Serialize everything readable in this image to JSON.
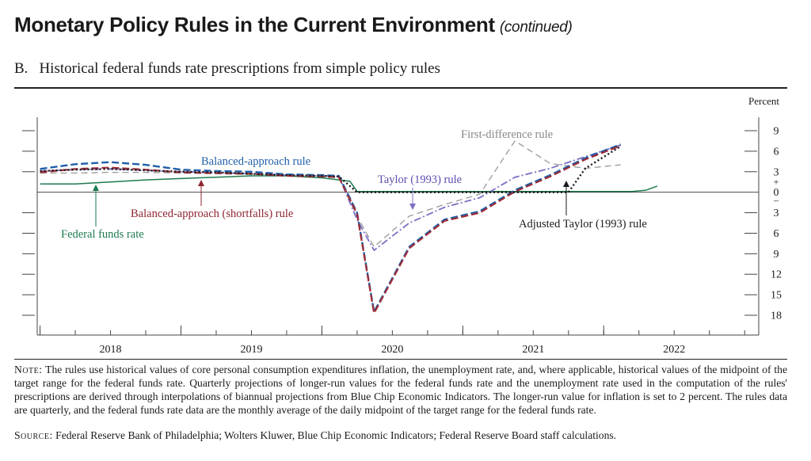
{
  "header": {
    "title": "Monetary Policy Rules in the Current Environment",
    "title_suffix": "(continued)",
    "panel_letter": "B.",
    "panel_title": "Historical federal funds rate prescriptions from simple policy rules"
  },
  "footer": {
    "note_label": "Note:",
    "note_text": "The rules use historical values of core personal consumption expenditures inflation, the unemployment rate, and, where applicable, historical values of the midpoint of the target range for the federal funds rate. Quarterly projections of longer-run values for the federal funds rate and the unemployment rate used in the computation of the rules' prescriptions are derived through interpolations of biannual projections from Blue Chip Economic Indicators. The longer-run value for inflation is set to 2 percent. The rules data are quarterly, and the federal funds rate data are the monthly average of the daily midpoint of the target range for the federal funds rate.",
    "source_label": "Source:",
    "source_text": "Federal Reserve Bank of Philadelphia; Wolters Kluwer, Blue Chip Economic Indicators; Federal Reserve Board staff calculations."
  },
  "chart_data": {
    "type": "line",
    "title": "Historical federal funds rate prescriptions from simple policy rules",
    "ylabel": "Percent",
    "ylim": [
      -18,
      9
    ],
    "xlim": [
      2017.48,
      2022.6
    ],
    "y_ticks": [
      9,
      6,
      3,
      0,
      -3,
      -6,
      -9,
      -12,
      -15,
      -18
    ],
    "y_tick_labels": [
      "9",
      "6",
      "3",
      "0",
      "3",
      "6",
      "9",
      "12",
      "15",
      "18"
    ],
    "zero_sign": "+\n–",
    "x_tick_labels": [
      "2018",
      "2019",
      "2020",
      "2021",
      "2022"
    ],
    "x_label_positions": [
      2018.0,
      2019.0,
      2020.0,
      2021.0,
      2022.0
    ],
    "grid": false,
    "series": [
      {
        "name": "Federal funds rate",
        "color": "#1e7a4f",
        "style": "solid",
        "x": [
          2017.5,
          2017.75,
          2018.0,
          2018.25,
          2018.5,
          2018.75,
          2019.0,
          2019.25,
          2019.5,
          2019.62,
          2019.7,
          2019.75,
          2020.0,
          2020.5,
          2021.0,
          2021.5,
          2021.7,
          2021.8,
          2021.88
        ],
        "y": [
          1.2,
          1.2,
          1.5,
          1.8,
          2.0,
          2.2,
          2.4,
          2.4,
          2.1,
          1.8,
          1.6,
          0.1,
          0.1,
          0.1,
          0.1,
          0.1,
          0.1,
          0.3,
          0.9
        ]
      },
      {
        "name": "Balanced-approach rule",
        "color": "#1f5fa8",
        "style": "dashed",
        "x": [
          2017.5,
          2017.75,
          2018.0,
          2018.25,
          2018.5,
          2018.75,
          2019.0,
          2019.25,
          2019.5,
          2019.62,
          2019.75,
          2019.87,
          2020.12,
          2020.37,
          2020.62,
          2020.87,
          2021.12,
          2021.37,
          2021.62
        ],
        "y": [
          3.4,
          4.1,
          4.4,
          4.0,
          3.3,
          3.1,
          3.0,
          2.6,
          2.5,
          2.4,
          -3.0,
          -17.5,
          -8.0,
          -4.0,
          -2.8,
          0.3,
          2.5,
          5.0,
          7.0
        ]
      },
      {
        "name": "Balanced-approach (shortfalls) rule",
        "color": "#9e2b35",
        "style": "dashed",
        "x": [
          2017.5,
          2017.75,
          2018.0,
          2018.25,
          2018.5,
          2018.75,
          2019.0,
          2019.25,
          2019.5,
          2019.62,
          2019.75,
          2019.87,
          2020.12,
          2020.37,
          2020.62,
          2020.87,
          2021.12,
          2021.37,
          2021.62
        ],
        "y": [
          2.9,
          3.4,
          3.6,
          3.3,
          2.9,
          2.8,
          2.7,
          2.4,
          2.3,
          2.2,
          -3.2,
          -17.7,
          -8.2,
          -4.2,
          -3.0,
          0.1,
          2.3,
          4.8,
          6.8
        ]
      },
      {
        "name": "Taylor (1993) rule",
        "color": "#7a6fc4",
        "style": "dashdot",
        "x": [
          2017.5,
          2017.75,
          2018.0,
          2018.25,
          2018.5,
          2018.75,
          2019.0,
          2019.25,
          2019.5,
          2019.62,
          2019.75,
          2019.87,
          2020.12,
          2020.37,
          2020.62,
          2020.87,
          2021.12,
          2021.37,
          2021.62
        ],
        "y": [
          3.1,
          3.3,
          3.4,
          3.2,
          3.0,
          2.9,
          2.7,
          2.5,
          2.4,
          2.3,
          -4.0,
          -8.5,
          -4.5,
          -2.2,
          -0.8,
          2.2,
          3.5,
          5.2,
          6.9
        ]
      },
      {
        "name": "Adjusted Taylor (1993) rule",
        "color": "#1a1a1a",
        "style": "dotted",
        "x": [
          2017.5,
          2017.75,
          2018.0,
          2018.25,
          2018.5,
          2018.75,
          2019.0,
          2019.25,
          2019.5,
          2019.62,
          2019.75,
          2019.87,
          2020.12,
          2020.37,
          2020.62,
          2020.87,
          2021.12,
          2021.25,
          2021.37,
          2021.62
        ],
        "y": [
          3.1,
          3.3,
          3.4,
          3.2,
          3.0,
          2.9,
          2.7,
          2.5,
          2.4,
          2.3,
          0.0,
          0.0,
          0.0,
          0.0,
          0.0,
          0.0,
          0.0,
          0.0,
          3.5,
          6.7
        ]
      },
      {
        "name": "First-difference rule",
        "color": "#999999",
        "style": "longdash",
        "x": [
          2017.5,
          2017.75,
          2018.0,
          2018.25,
          2018.5,
          2018.75,
          2019.0,
          2019.25,
          2019.5,
          2019.62,
          2019.75,
          2019.87,
          2020.12,
          2020.37,
          2020.62,
          2020.87,
          2021.12,
          2021.37,
          2021.62
        ],
        "y": [
          2.8,
          2.8,
          2.9,
          2.9,
          2.8,
          2.7,
          2.6,
          2.5,
          2.4,
          2.3,
          -3.5,
          -8.0,
          -3.5,
          -1.8,
          -0.3,
          7.5,
          4.2,
          3.5,
          4.0
        ]
      }
    ],
    "annotations": [
      {
        "text": "Balanced-approach rule",
        "color": "#1f5fa8"
      },
      {
        "text": "First-difference rule",
        "color": "#888888"
      },
      {
        "text": "Taylor (1993) rule",
        "color": "#5b4fb0"
      },
      {
        "text": "Balanced-approach (shortfalls) rule",
        "color": "#8e2430"
      },
      {
        "text": "Adjusted Taylor (1993) rule",
        "color": "#1a1a1a"
      },
      {
        "text": "Federal funds rate",
        "color": "#1e7a4f"
      }
    ]
  }
}
